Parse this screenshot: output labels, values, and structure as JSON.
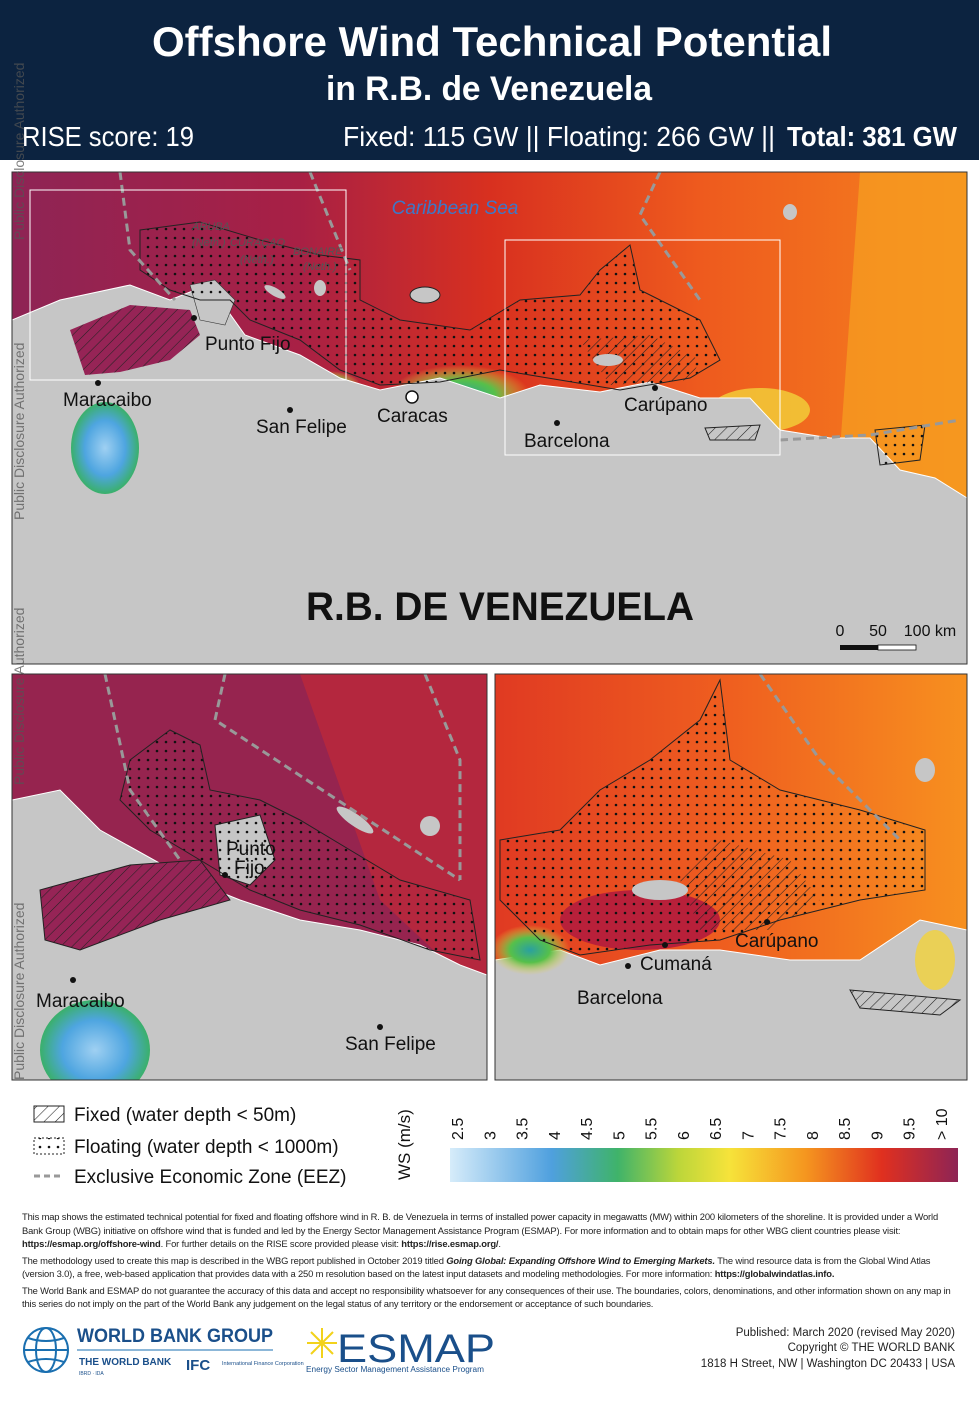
{
  "header": {
    "title": "Offshore Wind Technical Potential",
    "subtitle": "in R.B. de Venezuela",
    "rise": "RISE score: 19",
    "capacity": "Fixed: 115 GW  || Floating: 266 GW  ||",
    "total": "Total: 381 GW"
  },
  "watermark": [
    "Public Disclosure Authorized",
    "Public Disclosure Authorized",
    "Public Disclosure Authorized",
    "Public Disclosure Authorized"
  ],
  "main_map": {
    "sea": "Caribbean Sea",
    "islands": [
      "ARUBA",
      "(Neth.)",
      "CURAÇAO",
      "(Neth.)",
      "BONAIRE",
      "(Neth.)"
    ],
    "cities": [
      "Punto Fijo",
      "Maracaibo",
      "San Felipe",
      "Caracas",
      "Barcelona",
      "Carúpano"
    ],
    "country": "R.B. DE VENEZUELA",
    "scale": [
      "0",
      "50",
      "100 km"
    ]
  },
  "inset_west": {
    "cities": [
      "Punto",
      "Fijo",
      "Maracaibo",
      "San Felipe"
    ]
  },
  "inset_east": {
    "cities": [
      "Carúpano",
      "Cumaná",
      "Barcelona"
    ]
  },
  "legend": {
    "items": [
      "Fixed (water depth < 50m)",
      "Floating (water depth < 1000m)",
      "Exclusive Economic Zone (EEZ)"
    ],
    "colorbar_label": "WS (m/s)",
    "colorbar_ticks": [
      "2.5",
      "3",
      "3.5",
      "4",
      "4.5",
      "5",
      "5.5",
      "6",
      "6.5",
      "7",
      "7.5",
      "8",
      "8.5",
      "9",
      "9.5",
      "> 10"
    ]
  },
  "footer": {
    "paragraphs": [
      [
        "This map shows the estimated technical potential for fixed and floating offshore wind in R. B. de Venezuela in terms of installed power capacity in megawatts (MW) within 200 kilometers of the shoreline. It is provided under a World Bank Group (WBG) initiative on offshore wind that is funded and led by the Energy Sector Management Assistance Program (ESMAP). For more information and to obtain maps for other WBG client countries please visit: ",
        "https://esmap.org/offshore-wind",
        ". For further details on the RISE score provided please visit: ",
        "https://rise.esmap.org/",
        "."
      ],
      [
        "The methodology used to create this map is described in the WBG report published in October 2019 titled ",
        "Going Global: Expanding Offshore Wind to Emerging Markets.",
        " The wind resource data is from the Global Wind Atlas (version 3.0), a free, web-based application that provides data with a 250 m resolution based on the latest input datasets and modeling methodologies. For more information: ",
        "https://globalwindatlas.info."
      ],
      [
        "The World Bank and ESMAP do not guarantee the accuracy of this data and accept no responsibility whatsoever for any consequences of their use. The boundaries, colors, denominations, and other information shown on any map in this series do not imply on the part of the World Bank any judgement on the legal status of any territory or the endorsement or acceptance of such boundaries."
      ]
    ],
    "logos": {
      "wbg": "WORLD BANK GROUP",
      "wb": "THE WORLD BANK",
      "ibrd": "IBRD · IDA",
      "ifc": "IFC",
      "ifc_full": "International Finance Corporation",
      "esmap": "ESMAP",
      "esmap_full": "Energy Sector Management Assistance Program"
    },
    "published": [
      "Published: March 2020 (revised May 2020)",
      "Copyright © THE WORLD BANK",
      "1818 H Street, NW | Washington DC 20433 | USA"
    ]
  }
}
